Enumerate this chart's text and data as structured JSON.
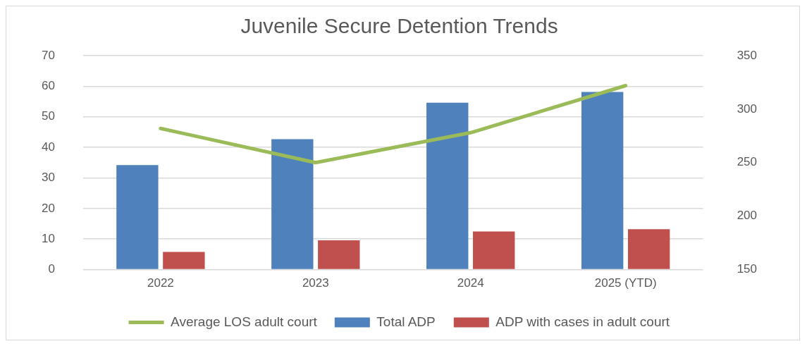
{
  "chart_data": {
    "type": "bar",
    "title": "Juvenile Secure Detention Trends",
    "categories": [
      "2022",
      "2023",
      "2024",
      "2025 (YTD)"
    ],
    "series": [
      {
        "name": "Total ADP",
        "color": "#4f81bd",
        "values": [
          34.2,
          42.7,
          54.6,
          58.1
        ]
      },
      {
        "name": "ADP with cases in adult court",
        "color": "#c0504d",
        "values": [
          5.8,
          9.6,
          12.5,
          13.2
        ]
      },
      {
        "name": "Average LOS adult court",
        "color": "#9bbb59",
        "type": "line",
        "axis": "y2",
        "values": [
          282,
          250,
          278,
          322
        ]
      }
    ],
    "ylim": [
      0,
      70
    ],
    "yticks": [
      0,
      10,
      20,
      30,
      40,
      50,
      60,
      70
    ],
    "y2lim": [
      150,
      350
    ],
    "y2ticks": [
      150,
      200,
      250,
      300,
      350
    ],
    "grid": "y",
    "legend": "bottom",
    "marker": "none",
    "line_style": "solid"
  }
}
